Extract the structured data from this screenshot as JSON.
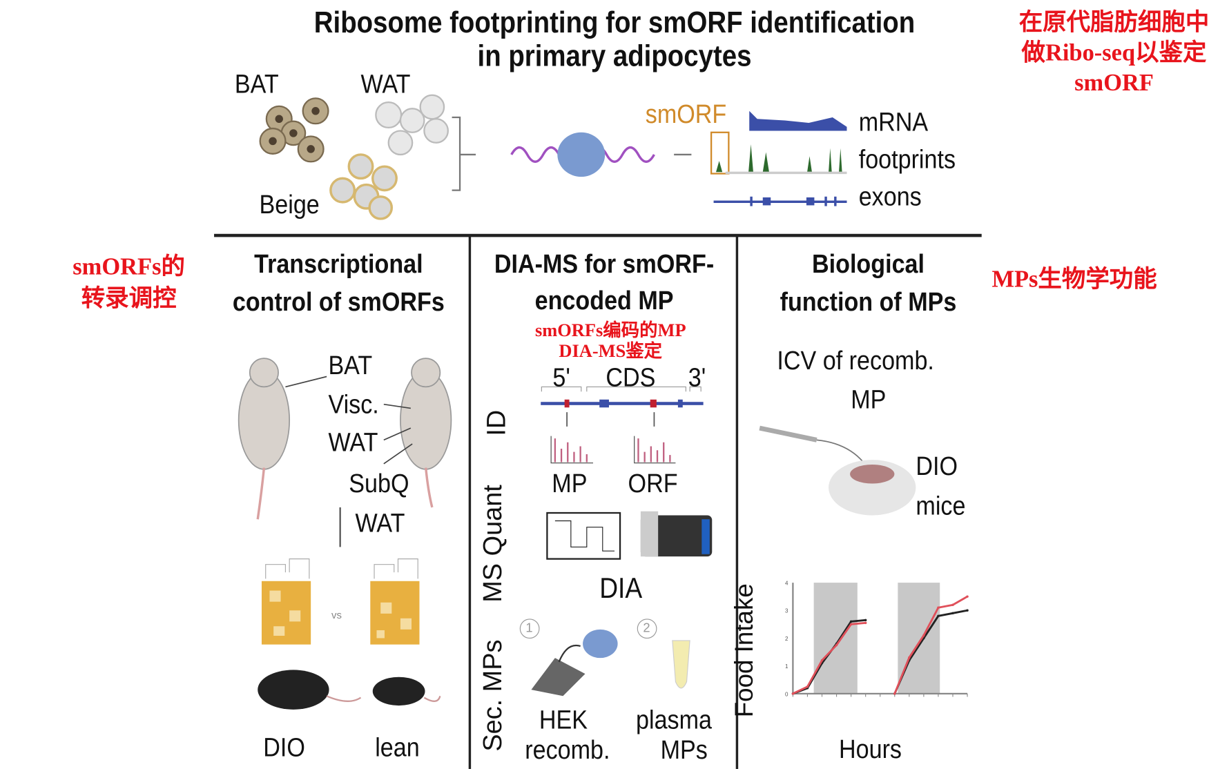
{
  "header": {
    "title_line1": "Ribosome footprinting for smORF identification",
    "title_line2": "in primary adipocytes"
  },
  "top": {
    "cells": [
      "BAT",
      "WAT",
      "Beige"
    ],
    "smorf": "smORF",
    "tracks": [
      "mRNA",
      "footprints",
      "exons"
    ]
  },
  "panels": {
    "transcriptional": {
      "title_line1": "Transcriptional",
      "title_line2": "control of smORFs",
      "tissues": [
        "BAT",
        "Visc.",
        "WAT",
        "SubQ",
        "WAT"
      ],
      "vs": "vs",
      "mice": [
        "DIO",
        "lean"
      ]
    },
    "diams": {
      "title_line1": "DIA-MS for smORF-",
      "title_line2": "encoded MP",
      "gene": [
        "5'",
        "CDS",
        "3'"
      ],
      "side_labels": [
        "ID",
        "MS Quant",
        "Sec. MPs"
      ],
      "id_labels": [
        "MP",
        "ORF"
      ],
      "dia": "DIA",
      "steps": [
        "1",
        "2"
      ],
      "sources": [
        [
          "HEK",
          "recomb."
        ],
        [
          "plasma",
          "MPs"
        ]
      ]
    },
    "biological": {
      "title_line1": "Biological",
      "title_line2": "function of MPs",
      "icv_line1": "ICV of recomb.",
      "icv_line2": "MP",
      "mice_line1": "DIO",
      "mice_line2": "mice"
    }
  },
  "annotations": {
    "top_right": [
      "在原代脂肪细胞中",
      "做Ribo-seq以鉴定",
      "smORF"
    ],
    "left": [
      "smORFs的",
      "转录调控"
    ],
    "middle": [
      "smORFs编码的MP",
      "DIA-MS鉴定"
    ],
    "right": "MPs生物学功能"
  },
  "chart_data": {
    "type": "line",
    "xlabel": "Hours",
    "ylabel": "Food Intake",
    "ylim": [
      0,
      4
    ],
    "yticks": [
      "0",
      "1",
      "2",
      "3",
      "4"
    ],
    "series": [
      {
        "color": "#222222",
        "values": [
          0,
          0.2,
          1.1,
          1.8,
          2.6,
          2.65,
          null,
          0,
          1.2,
          2.0,
          2.8,
          2.9,
          3.0
        ]
      },
      {
        "color": "#e0505a",
        "values": [
          0,
          0.25,
          1.2,
          1.75,
          2.5,
          2.55,
          null,
          0,
          1.3,
          2.1,
          3.1,
          3.2,
          3.5
        ]
      }
    ],
    "shaded_dark_periods": 2,
    "accent_colors": {
      "mrna": "#3b4fa8",
      "footprints": "#2d6a2d",
      "smorf": "#d08a2a",
      "rna": "#a050c0"
    }
  }
}
